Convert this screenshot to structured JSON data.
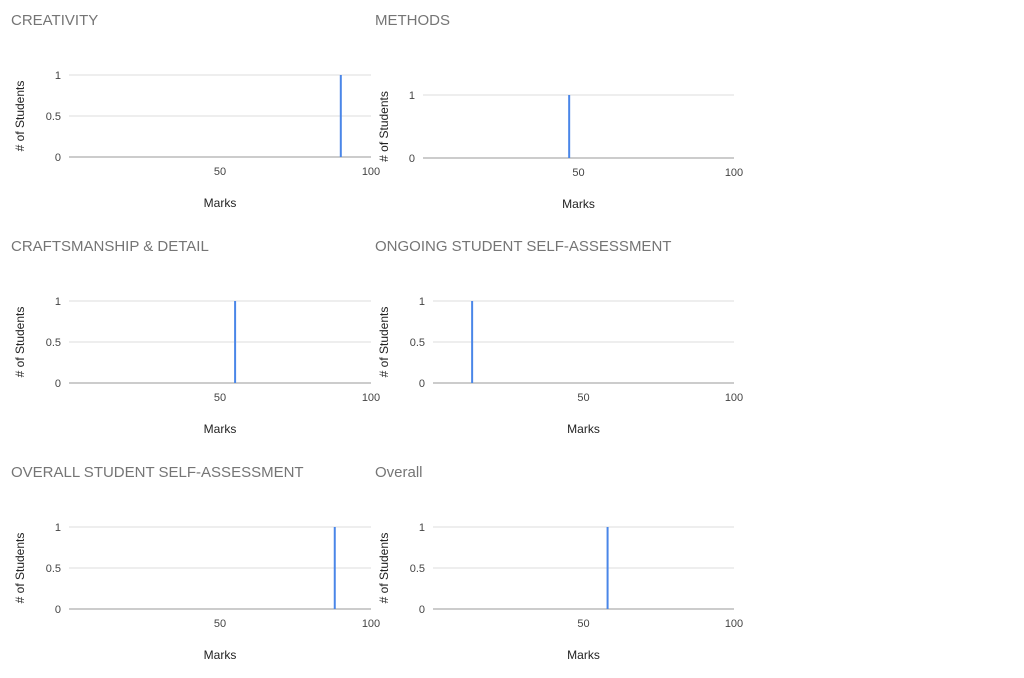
{
  "chart_data": [
    {
      "type": "bar",
      "title": "CREATIVITY",
      "xlabel": "Marks",
      "ylabel": "# of Students",
      "xlim": [
        0,
        100
      ],
      "ylim": [
        0,
        1
      ],
      "xticks": [
        "50",
        "100"
      ],
      "yticks": [
        "0",
        "0.5",
        "1"
      ],
      "series": [
        {
          "x": [
            90
          ],
          "y": [
            1
          ],
          "color": "#4a86e8"
        }
      ]
    },
    {
      "type": "bar",
      "title": "METHODS",
      "xlabel": "Marks",
      "ylabel": "# of Students",
      "xlim": [
        0,
        100
      ],
      "ylim": [
        0,
        1
      ],
      "xticks": [
        "50",
        "100"
      ],
      "yticks": [
        "0",
        "1"
      ],
      "series": [
        {
          "x": [
            47
          ],
          "y": [
            1
          ],
          "color": "#4a86e8"
        }
      ]
    },
    {
      "type": "bar",
      "title": "CRAFTSMANSHIP & DETAIL",
      "xlabel": "Marks",
      "ylabel": "# of Students",
      "xlim": [
        0,
        100
      ],
      "ylim": [
        0,
        1
      ],
      "xticks": [
        "50",
        "100"
      ],
      "yticks": [
        "0",
        "0.5",
        "1"
      ],
      "series": [
        {
          "x": [
            55
          ],
          "y": [
            1
          ],
          "color": "#4a86e8"
        }
      ]
    },
    {
      "type": "bar",
      "title": "ONGOING STUDENT SELF-ASSESSMENT",
      "xlabel": "Marks",
      "ylabel": "# of Students",
      "xlim": [
        0,
        100
      ],
      "ylim": [
        0,
        1
      ],
      "xticks": [
        "50",
        "100"
      ],
      "yticks": [
        "0",
        "0.5",
        "1"
      ],
      "series": [
        {
          "x": [
            13
          ],
          "y": [
            1
          ],
          "color": "#4a86e8"
        }
      ]
    },
    {
      "type": "bar",
      "title": "OVERALL STUDENT SELF-ASSESSMENT",
      "xlabel": "Marks",
      "ylabel": "# of Students",
      "xlim": [
        0,
        100
      ],
      "ylim": [
        0,
        1
      ],
      "xticks": [
        "50",
        "100"
      ],
      "yticks": [
        "0",
        "0.5",
        "1"
      ],
      "series": [
        {
          "x": [
            88
          ],
          "y": [
            1
          ],
          "color": "#4a86e8"
        }
      ]
    },
    {
      "type": "bar",
      "title": "Overall",
      "xlabel": "Marks",
      "ylabel": "# of Students",
      "xlim": [
        0,
        100
      ],
      "ylim": [
        0,
        1
      ],
      "xticks": [
        "50",
        "100"
      ],
      "yticks": [
        "0",
        "0.5",
        "1"
      ],
      "series": [
        {
          "x": [
            58
          ],
          "y": [
            1
          ],
          "color": "#4a86e8"
        }
      ]
    }
  ]
}
